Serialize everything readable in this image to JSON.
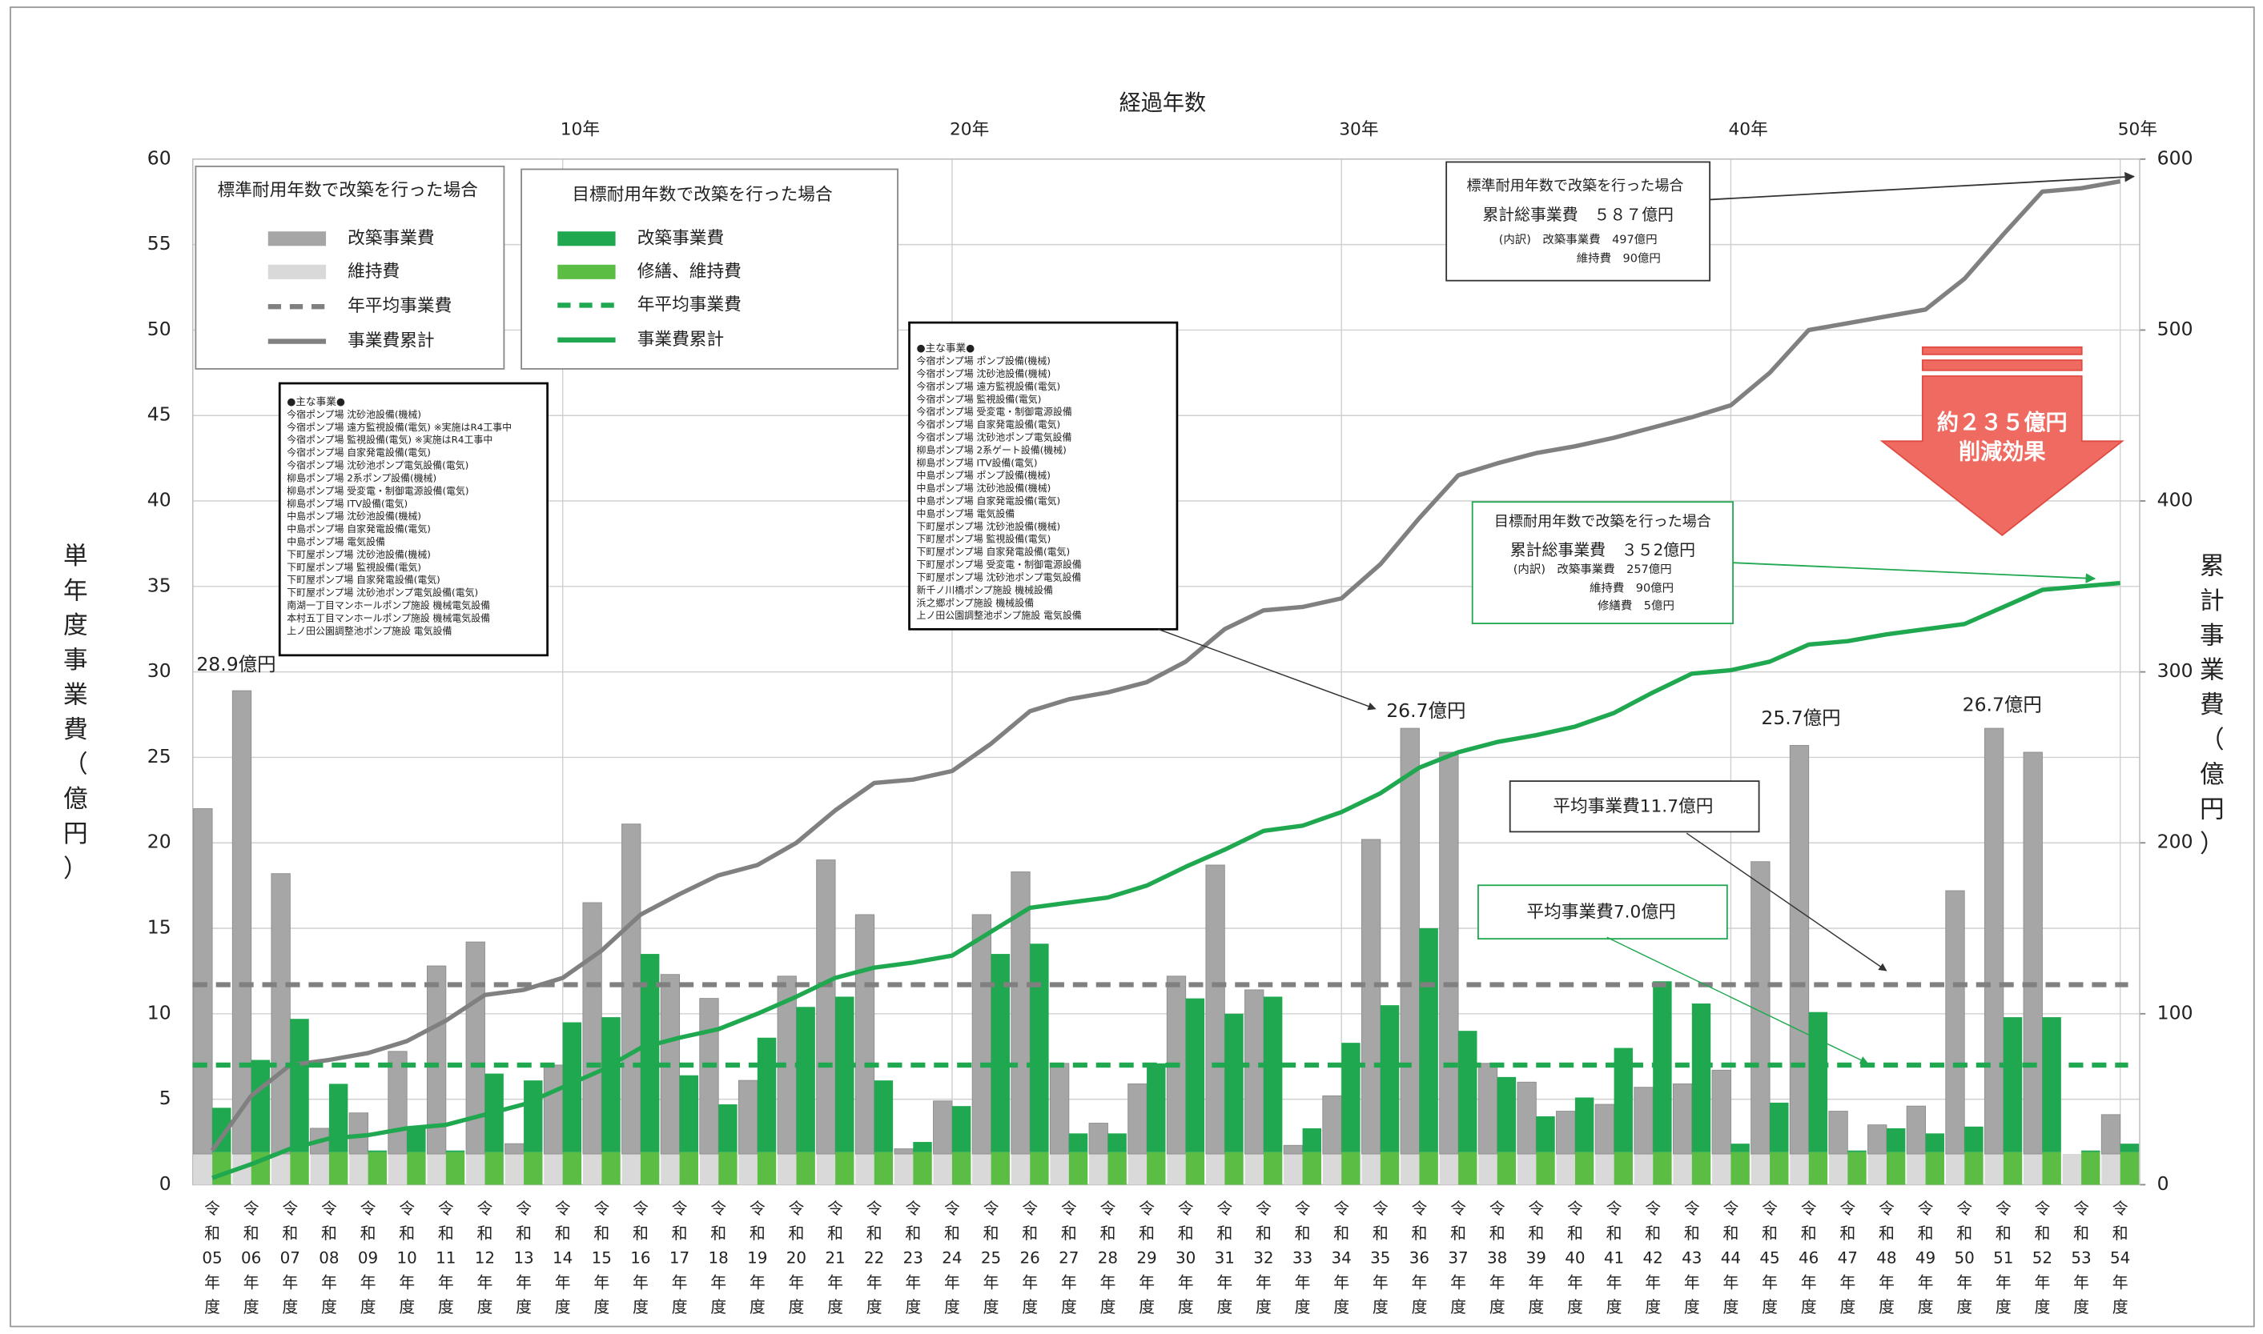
{
  "chart_data": {
    "type": "combo",
    "top_xlabel": "経過年数",
    "ylabel": "単年度事業費（億円）",
    "y2label": "累計事業費（億円）",
    "categories": [
      "令和05年度",
      "令和06年度",
      "令和07年度",
      "令和08年度",
      "令和09年度",
      "令和10年度",
      "令和11年度",
      "令和12年度",
      "令和13年度",
      "令和14年度",
      "令和15年度",
      "令和16年度",
      "令和17年度",
      "令和18年度",
      "令和19年度",
      "令和20年度",
      "令和21年度",
      "令和22年度",
      "令和23年度",
      "令和24年度",
      "令和25年度",
      "令和26年度",
      "令和27年度",
      "令和28年度",
      "令和29年度",
      "令和30年度",
      "令和31年度",
      "令和32年度",
      "令和33年度",
      "令和34年度",
      "令和35年度",
      "令和36年度",
      "令和37年度",
      "令和38年度",
      "令和39年度",
      "令和40年度",
      "令和41年度",
      "令和42年度",
      "令和43年度",
      "令和44年度",
      "令和45年度",
      "令和46年度",
      "令和47年度",
      "令和48年度",
      "令和49年度",
      "令和50年度",
      "令和51年度",
      "令和52年度",
      "令和53年度",
      "令和54年度"
    ],
    "top_xticks": [
      {
        "value": 10,
        "label": "10年"
      },
      {
        "value": 20,
        "label": "20年"
      },
      {
        "value": 30,
        "label": "30年"
      },
      {
        "value": 40,
        "label": "40年"
      },
      {
        "value": 50,
        "label": "50年"
      }
    ],
    "ylim": [
      0,
      60
    ],
    "yticks": [
      0,
      5,
      10,
      15,
      20,
      25,
      30,
      35,
      40,
      45,
      50,
      55,
      60
    ],
    "y2lim": [
      0,
      600
    ],
    "y2ticks": [
      0,
      100,
      200,
      300,
      400,
      500,
      600
    ],
    "grid": true,
    "scenarios": [
      {
        "title": "標準耐用年数で改築を行った場合",
        "series": [
          {
            "name": "改築事業費",
            "type": "bar",
            "color": "#a6a6a6",
            "values": [
              20.2,
              27.1,
              16.4,
              1.5,
              2.4,
              6.0,
              11.0,
              12.4,
              0.6,
              5.2,
              14.7,
              19.3,
              10.5,
              9.1,
              4.3,
              10.4,
              17.2,
              14.0,
              0.3,
              3.1,
              14.0,
              16.5,
              5.3,
              1.8,
              4.1,
              10.4,
              16.9,
              9.6,
              0.5,
              3.4,
              18.4,
              24.9,
              23.5,
              5.3,
              4.2,
              2.5,
              2.9,
              3.9,
              4.1,
              4.9,
              17.1,
              23.9,
              2.5,
              1.7,
              2.8,
              15.4,
              24.9,
              23.5,
              0,
              2.3
            ]
          },
          {
            "name": "維持費",
            "type": "bar",
            "color": "#d9d9d9",
            "values": [
              1.8,
              1.8,
              1.8,
              1.8,
              1.8,
              1.8,
              1.8,
              1.8,
              1.8,
              1.8,
              1.8,
              1.8,
              1.8,
              1.8,
              1.8,
              1.8,
              1.8,
              1.8,
              1.8,
              1.8,
              1.8,
              1.8,
              1.8,
              1.8,
              1.8,
              1.8,
              1.8,
              1.8,
              1.8,
              1.8,
              1.8,
              1.8,
              1.8,
              1.8,
              1.8,
              1.8,
              1.8,
              1.8,
              1.8,
              1.8,
              1.8,
              1.8,
              1.8,
              1.8,
              1.8,
              1.8,
              1.8,
              1.8,
              1.8,
              1.8
            ]
          },
          {
            "name": "年平均事業費",
            "type": "hline",
            "color": "#808080",
            "value": 11.7
          },
          {
            "name": "事業費累計",
            "type": "line",
            "axis": "y2",
            "color": "#808080",
            "values": [
              20,
              52,
              70,
              73,
              77,
              84,
              96,
              111,
              114,
              121,
              137,
              158,
              170,
              181,
              187,
              200,
              219,
              235,
              237,
              242,
              258,
              277,
              284,
              288,
              294,
              306,
              325,
              336,
              338,
              343,
              363,
              390,
              415,
              422,
              428,
              432,
              437,
              443,
              449,
              456,
              475,
              500,
              504,
              508,
              512,
              530,
              556,
              581,
              583,
              587
            ]
          }
        ]
      },
      {
        "title": "目標耐用年数で改築を行った場合",
        "series": [
          {
            "name": "改築事業費",
            "type": "bar",
            "color": "#1fa84f",
            "values": [
              2.6,
              5.4,
              7.8,
              4.0,
              0.1,
              1.4,
              0.1,
              4.6,
              4.2,
              7.6,
              7.9,
              11.6,
              4.5,
              2.8,
              6.7,
              8.5,
              9.1,
              4.2,
              0.6,
              2.7,
              11.6,
              12.2,
              1.1,
              1.1,
              5.2,
              9.0,
              8.1,
              9.1,
              1.4,
              6.4,
              8.6,
              13.1,
              7.1,
              4.4,
              2.1,
              3.2,
              6.1,
              10.0,
              8.7,
              0.5,
              2.9,
              8.2,
              0.1,
              1.4,
              1.1,
              1.5,
              7.9,
              7.9,
              0.1,
              0.5
            ]
          },
          {
            "name": "修繕、維持費",
            "type": "bar",
            "color": "#5cbd45",
            "values": [
              1.9,
              1.9,
              1.9,
              1.9,
              1.9,
              1.9,
              1.9,
              1.9,
              1.9,
              1.9,
              1.9,
              1.9,
              1.9,
              1.9,
              1.9,
              1.9,
              1.9,
              1.9,
              1.9,
              1.9,
              1.9,
              1.9,
              1.9,
              1.9,
              1.9,
              1.9,
              1.9,
              1.9,
              1.9,
              1.9,
              1.9,
              1.9,
              1.9,
              1.9,
              1.9,
              1.9,
              1.9,
              1.9,
              1.9,
              1.9,
              1.9,
              1.9,
              1.9,
              1.9,
              1.9,
              1.9,
              1.9,
              1.9,
              1.9,
              1.9
            ]
          },
          {
            "name": "年平均事業費",
            "type": "hline",
            "color": "#1fa84f",
            "value": 7.0
          },
          {
            "name": "事業費累計",
            "type": "line",
            "axis": "y2",
            "color": "#1fa84f",
            "values": [
              4,
              12,
              21,
              27,
              29,
              33,
              35,
              41,
              47,
              57,
              67,
              80,
              86,
              91,
              100,
              110,
              121,
              127,
              130,
              134,
              148,
              162,
              165,
              168,
              175,
              186,
              196,
              207,
              210,
              218,
              229,
              244,
              253,
              259,
              263,
              268,
              276,
              288,
              299,
              301,
              306,
              316,
              318,
              322,
              325,
              328,
              338,
              348,
              350,
              352
            ]
          }
        ]
      }
    ],
    "peak_labels": [
      "28.9億円",
      "26.7億円",
      "25.7億円",
      "26.7億円"
    ],
    "notes": [
      {
        "title": "●主な事業●",
        "items": [
          "今宿ポンプ場 沈砂池設備(機械)",
          "今宿ポンプ場 遠方監視設備(電気) ※実施はR4工事中",
          "今宿ポンプ場 監視設備(電気) ※実施はR4工事中",
          "今宿ポンプ場 自家発電設備(電気)",
          "今宿ポンプ場 沈砂池ポンプ電気設備(電気)",
          "柳島ポンプ場 2系ポンプ設備(機械)",
          "柳島ポンプ場 受変電・制御電源設備(電気)",
          "柳島ポンプ場 ITV設備(電気)",
          "中島ポンプ場 沈砂池設備(機械)",
          "中島ポンプ場 自家発電設備(電気)",
          "中島ポンプ場 電気設備",
          "下町屋ポンプ場 沈砂池設備(機械)",
          "下町屋ポンプ場 監視設備(電気)",
          "下町屋ポンプ場 自家発電設備(電気)",
          "下町屋ポンプ場 沈砂池ポンプ電気設備(電気)",
          "南湖一丁目マンホールポンプ施設 機械電気設備",
          "本村五丁目マンホールポンプ施設 機械電気設備",
          "上ノ田公園調整池ポンプ施設 電気設備"
        ]
      },
      {
        "title": "●主な事業●",
        "items": [
          "今宿ポンプ場 ポンプ設備(機械)",
          "今宿ポンプ場 沈砂池設備(機械)",
          "今宿ポンプ場 遠方監視設備(電気)",
          "今宿ポンプ場 監視設備(電気)",
          "今宿ポンプ場 受変電・制御電源設備",
          "今宿ポンプ場 自家発電設備(電気)",
          "今宿ポンプ場 沈砂池ポンプ電気設備",
          "柳島ポンプ場 2系ゲート設備(機械)",
          "柳島ポンプ場 ITV設備(電気)",
          "中島ポンプ場 ポンプ設備(機械)",
          "中島ポンプ場 沈砂池設備(機械)",
          "中島ポンプ場 自家発電設備(電気)",
          "中島ポンプ場 電気設備",
          "下町屋ポンプ場 沈砂池設備(機械)",
          "下町屋ポンプ場 監視設備(電気)",
          "下町屋ポンプ場 自家発電設備(電気)",
          "下町屋ポンプ場 受変電・制御電源設備",
          "下町屋ポンプ場 沈砂池ポンプ電気設備",
          "新千ノ川橋ポンプ施設 機械設備",
          "浜之郷ポンプ施設 機械設備",
          "上ノ田公園調整池ポンプ施設 電気設備"
        ]
      }
    ],
    "info_boxes": [
      {
        "lines": [
          "標準耐用年数で改築を行った場合",
          "累計総事業費　５８７億円",
          "(内訳)　改築事業費　497億円",
          "維持費　90億円"
        ]
      },
      {
        "lines": [
          "目標耐用年数で改築を行った場合",
          "累計総事業費　３５2億円",
          "(内訳)　改築事業費　257億円",
          "維持費　90億円",
          "修繕費　5億円"
        ]
      }
    ],
    "reduction": [
      "約２３５億円",
      "削減効果"
    ],
    "average_labels": [
      "平均事業費11.7億円",
      "平均事業費7.0億円"
    ]
  }
}
